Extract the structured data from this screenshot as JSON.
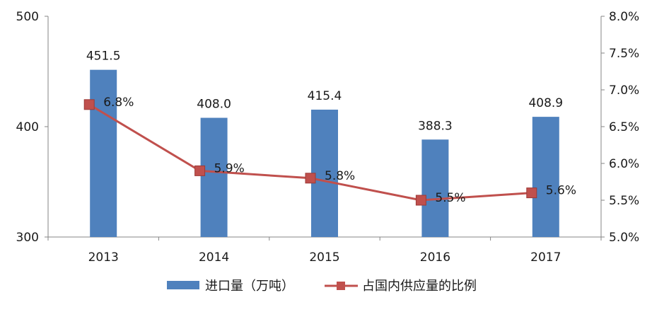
{
  "chart_data": {
    "type": "bar+line",
    "categories": [
      "2013",
      "2014",
      "2015",
      "2016",
      "2017"
    ],
    "series": [
      {
        "name": "进口量（万吨）",
        "type": "bar",
        "axis": "left",
        "values": [
          451.5,
          408.0,
          415.4,
          388.3,
          408.9
        ],
        "labels": [
          "451.5",
          "408.0",
          "415.4",
          "388.3",
          "408.9"
        ]
      },
      {
        "name": "占国内供应量的比例",
        "type": "line",
        "axis": "right",
        "values": [
          6.8,
          5.9,
          5.8,
          5.5,
          5.6
        ],
        "labels": [
          "6.8%",
          "5.9%",
          "5.8%",
          "5.5%",
          "5.6%"
        ]
      }
    ],
    "y_left": {
      "min": 300,
      "max": 500,
      "ticks": [
        "300",
        "400",
        "500"
      ]
    },
    "y_right": {
      "min": 5.0,
      "max": 8.0,
      "ticks": [
        "5.0%",
        "5.5%",
        "6.0%",
        "6.5%",
        "7.0%",
        "7.5%",
        "8.0%"
      ]
    },
    "grid": false,
    "legend_position": "bottom",
    "colors": {
      "bar": "#4f81bd",
      "line": "#c0504d",
      "axis": "#868686"
    }
  }
}
